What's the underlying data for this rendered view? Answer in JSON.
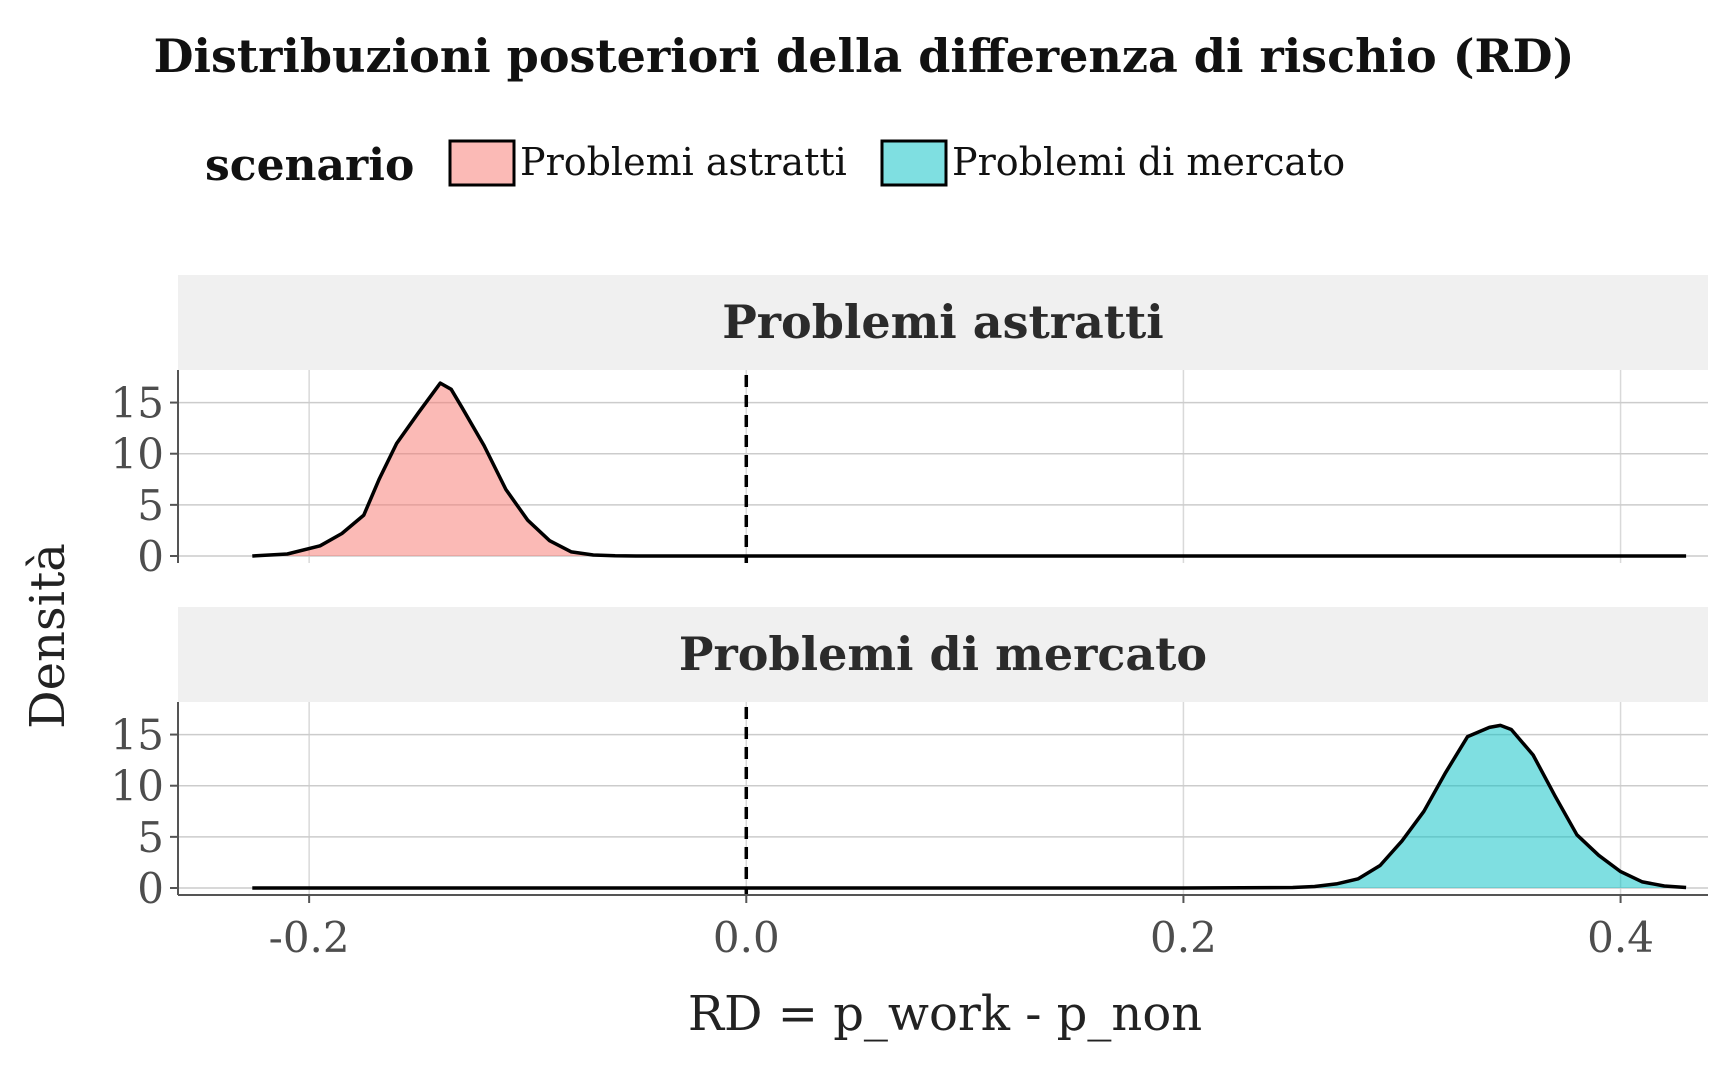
{
  "chart_data": {
    "type": "area",
    "title": "Distribuzioni posteriori della differenza di rischio (RD)",
    "xlabel": "RD = p_work - p_non",
    "ylabel": "Densità",
    "legend": {
      "title": "scenario",
      "position": "top",
      "entries": [
        {
          "label": "Problemi astratti",
          "color": "#F8766D"
        },
        {
          "label": "Problemi di mercato",
          "color": "#00BFC4"
        }
      ]
    },
    "xlim": [
      -0.26,
      0.44
    ],
    "ylim": [
      0,
      17.5
    ],
    "x_ticks": [
      "-0.2",
      "0.0",
      "0.2",
      "0.4"
    ],
    "x_tick_values": [
      -0.2,
      0.0,
      0.2,
      0.4
    ],
    "y_ticks": [
      "0",
      "5",
      "10",
      "15"
    ],
    "y_tick_values": [
      0,
      5,
      10,
      15
    ],
    "grid": true,
    "reference_line": {
      "x": 0,
      "style": "dashed"
    },
    "panels": [
      {
        "strip": "Problemi astratti",
        "color": "#F8766D",
        "x": [
          -0.226,
          -0.21,
          -0.195,
          -0.185,
          -0.175,
          -0.168,
          -0.16,
          -0.15,
          -0.14,
          -0.135,
          -0.13,
          -0.12,
          -0.11,
          -0.1,
          -0.09,
          -0.08,
          -0.07,
          -0.06,
          -0.05,
          0.0,
          0.1,
          0.2,
          0.3,
          0.43
        ],
        "y": [
          0,
          0.2,
          1.0,
          2.2,
          4.0,
          7.5,
          11.0,
          14.0,
          16.9,
          16.3,
          14.5,
          10.8,
          6.5,
          3.5,
          1.5,
          0.4,
          0.1,
          0.02,
          0,
          0,
          0,
          0,
          0,
          0
        ]
      },
      {
        "strip": "Problemi di mercato",
        "color": "#00BFC4",
        "x": [
          -0.226,
          0.0,
          0.1,
          0.2,
          0.25,
          0.26,
          0.27,
          0.28,
          0.29,
          0.3,
          0.31,
          0.32,
          0.33,
          0.34,
          0.345,
          0.35,
          0.36,
          0.37,
          0.38,
          0.39,
          0.4,
          0.41,
          0.42,
          0.43
        ],
        "y": [
          0,
          0,
          0,
          0,
          0.05,
          0.15,
          0.4,
          0.9,
          2.2,
          4.6,
          7.5,
          11.3,
          14.8,
          15.7,
          15.9,
          15.5,
          13.0,
          9.0,
          5.2,
          3.2,
          1.6,
          0.6,
          0.2,
          0.05
        ]
      }
    ]
  }
}
